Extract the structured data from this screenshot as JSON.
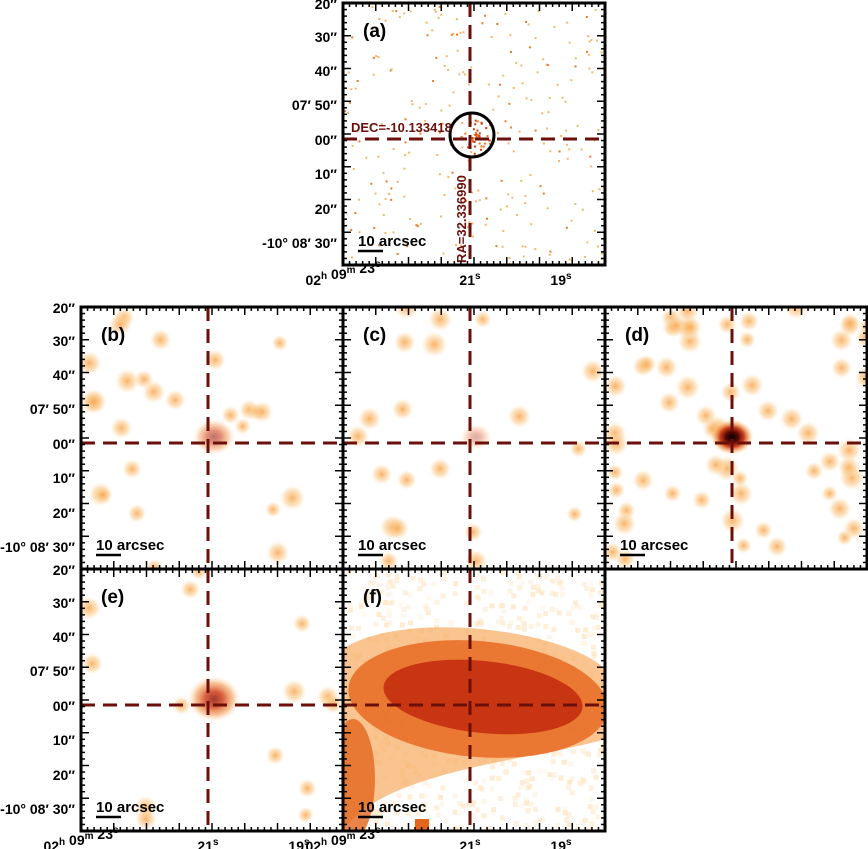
{
  "chart_data": {
    "type": "image",
    "crosshair": {
      "ra_label": "RA=32.336990",
      "dec_label": "DEC=-10.133418",
      "color": "#6b0f0a"
    },
    "colormap": [
      "#ffffff",
      "#fde6c4",
      "#f9b56a",
      "#ef7a22",
      "#d13a10",
      "#8f1408",
      "#1a0000"
    ],
    "ytick_labels": [
      "20″",
      "30″",
      "40″",
      "07′ 50″",
      "00″",
      "10″",
      "20″",
      "-10° 08′ 30″"
    ],
    "xtick_labels": [
      {
        "text": "02",
        "sup": "h",
        "text2": " 09",
        "sup2": "m",
        "text3": " 23",
        "sup3": "s"
      },
      {
        "text": "21",
        "sup": "s"
      },
      {
        "text": "19",
        "sup": "s"
      }
    ],
    "panels": [
      {
        "id": "a",
        "label": "(a)",
        "scale_bar": "10 arcsec",
        "style": "xray",
        "circle": true,
        "show_coords": true
      },
      {
        "id": "b",
        "label": "(b)",
        "scale_bar": "10 arcsec",
        "style": "blobs",
        "peak": 0.6
      },
      {
        "id": "c",
        "label": "(c)",
        "scale_bar": "10 arcsec",
        "style": "blobs",
        "peak": 0.35
      },
      {
        "id": "d",
        "label": "(d)",
        "scale_bar": "10 arcsec",
        "style": "blobs_dense",
        "peak": 1.0
      },
      {
        "id": "e",
        "label": "(e)",
        "scale_bar": "10 arcsec",
        "style": "blobs_sparse",
        "peak": 0.85
      },
      {
        "id": "f",
        "label": "(f)",
        "scale_bar": "10 arcsec",
        "style": "galaxy",
        "peak": 0.9
      }
    ]
  }
}
